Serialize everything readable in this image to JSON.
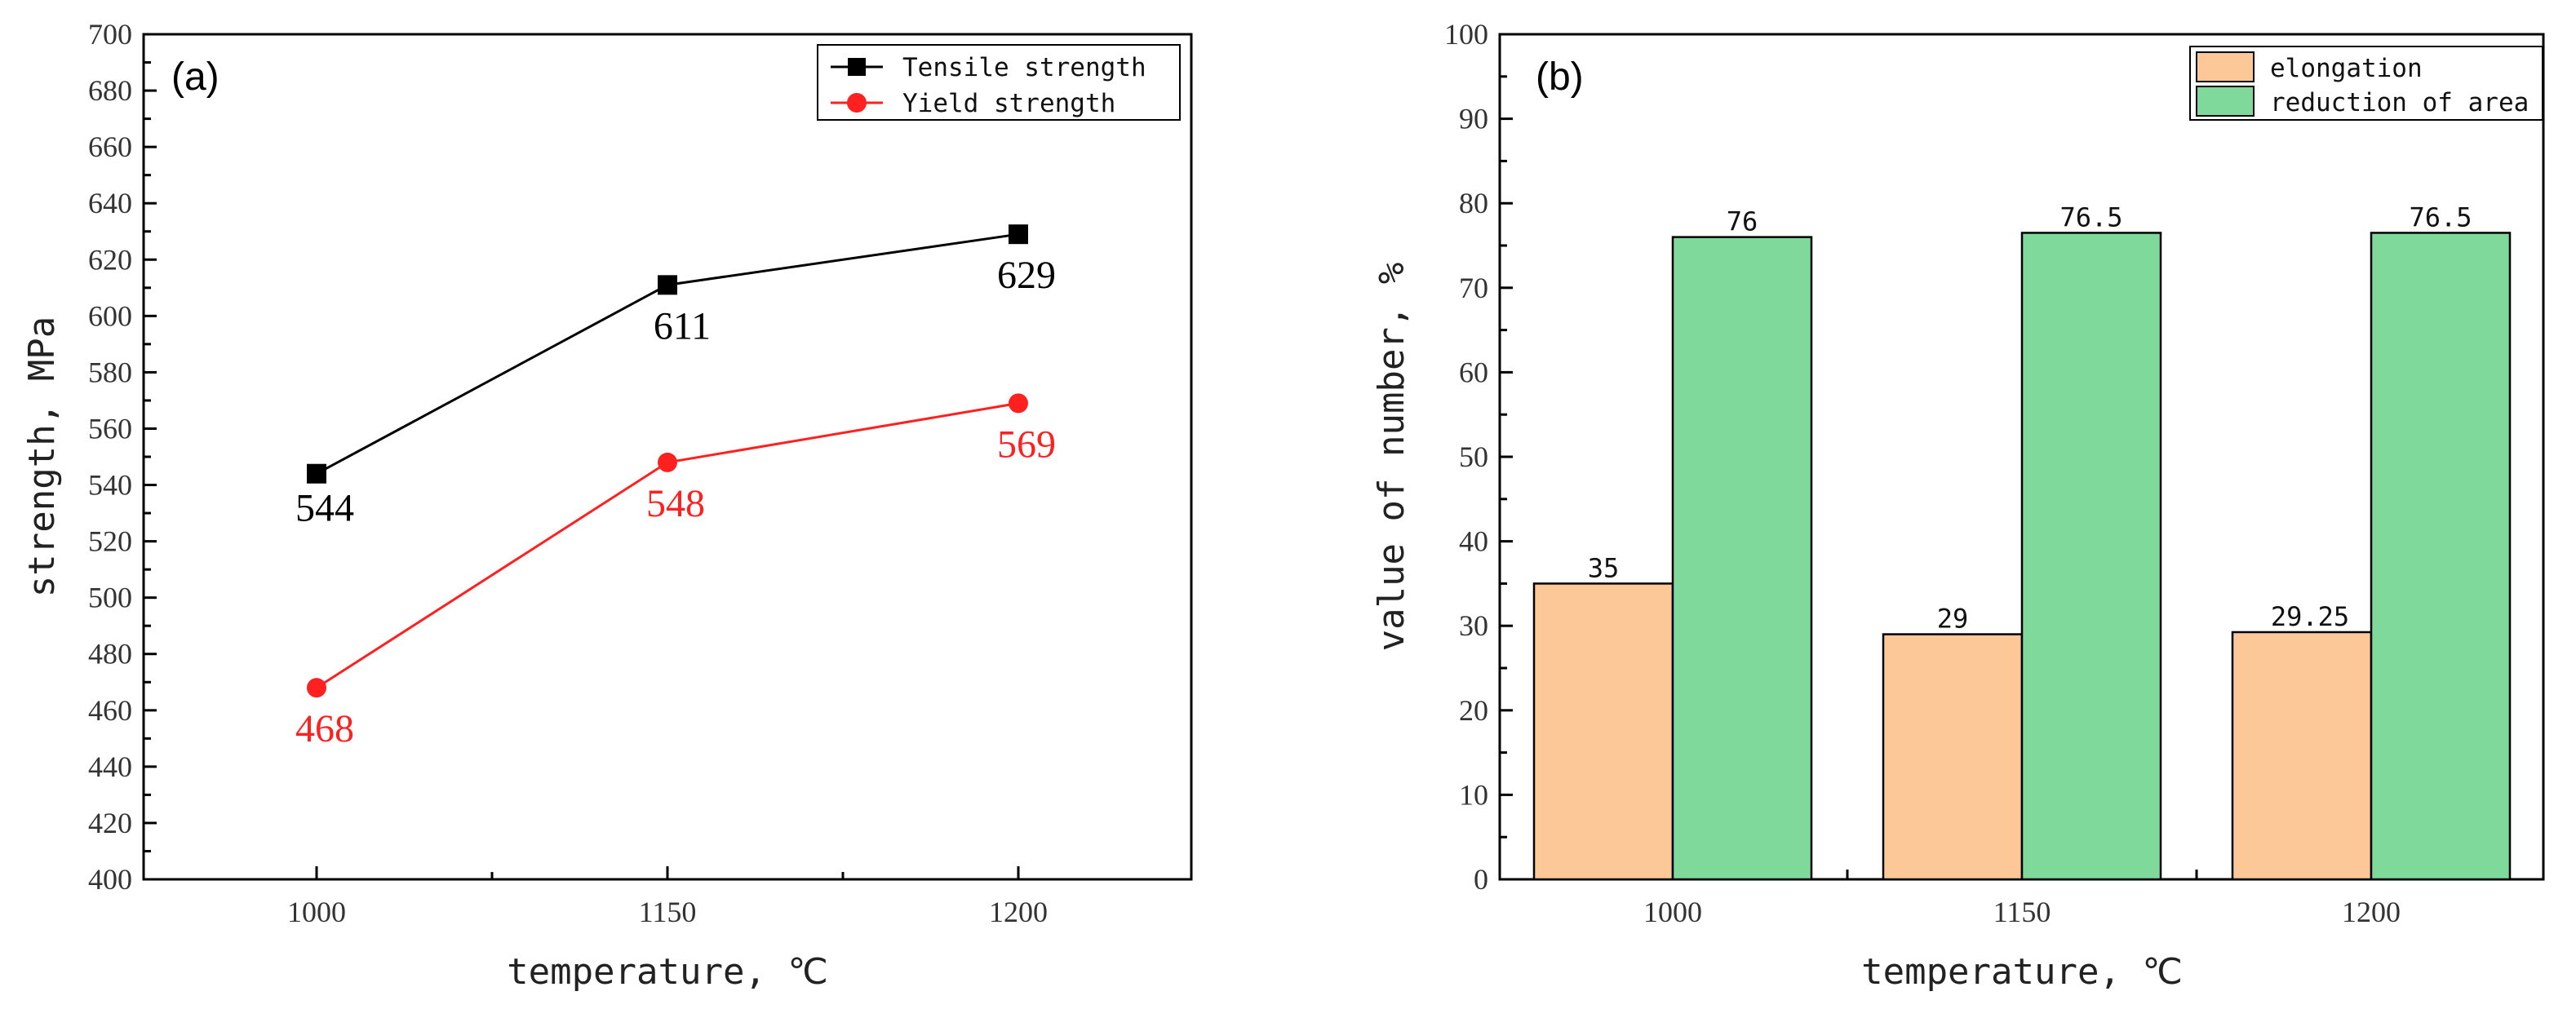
{
  "chart_data": [
    {
      "type": "line",
      "panel_label": "(a)",
      "xlabel": "temperature, ℃",
      "ylabel": "strength, MPa",
      "categories": [
        "1000",
        "1150",
        "1200"
      ],
      "yticks": [
        "400",
        "420",
        "440",
        "460",
        "480",
        "500",
        "520",
        "540",
        "560",
        "580",
        "600",
        "620",
        "640",
        "660",
        "680",
        "700"
      ],
      "ylim": [
        400,
        700
      ],
      "legend_position": "top-right",
      "series": [
        {
          "name": "Tensile strength",
          "color": "#000000",
          "marker": "square",
          "values": [
            544,
            611,
            629
          ],
          "labels": [
            "544",
            "611",
            "629"
          ]
        },
        {
          "name": "Yield strength",
          "color": "#ff2020",
          "marker": "circle",
          "values": [
            468,
            548,
            569
          ],
          "labels": [
            "468",
            "548",
            "569"
          ]
        }
      ]
    },
    {
      "type": "bar",
      "panel_label": "(b)",
      "xlabel": "temperature, ℃",
      "ylabel": "value of number, %",
      "categories": [
        "1000",
        "1150",
        "1200"
      ],
      "yticks": [
        "0",
        "10",
        "20",
        "30",
        "40",
        "50",
        "60",
        "70",
        "80",
        "90",
        "100"
      ],
      "ylim": [
        0,
        100
      ],
      "legend_position": "top-right",
      "series": [
        {
          "name": "elongation",
          "color": "#fcc898",
          "values": [
            35,
            29,
            29.25
          ],
          "labels": [
            "35",
            "29",
            "29.25"
          ]
        },
        {
          "name": "reduction of area",
          "color": "#7fd99a",
          "values": [
            76,
            76.5,
            76.5
          ],
          "labels": [
            "76",
            "76.5",
            "76.5"
          ]
        }
      ]
    }
  ]
}
